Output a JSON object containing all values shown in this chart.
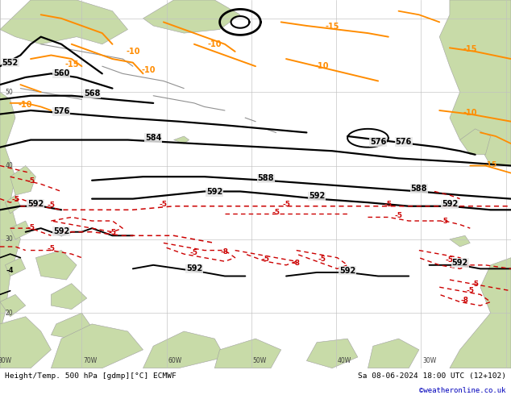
{
  "title_left": "Height/Temp. 500 hPa [gdmp][°C] ECMWF",
  "title_right": "Sa 08-06-2024 18:00 UTC (12+102)",
  "copyright": "©weatheronline.co.uk",
  "land_color": "#c8dba8",
  "sea_color": "#e8e8e8",
  "land_border_color": "#a0a0a0",
  "black_color": "#000000",
  "red_color": "#cc0000",
  "orange_color": "#ff8c00",
  "gray_color": "#909090",
  "grid_color": "#c0c0c0",
  "bottom_bar_color": "#c8c8c8",
  "figsize": [
    6.34,
    4.9
  ],
  "dpi": 100
}
